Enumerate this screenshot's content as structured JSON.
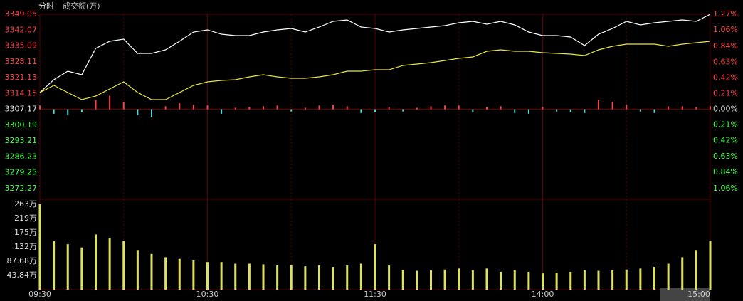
{
  "header": {
    "tab": "分时",
    "volume_label": "成交额(万)"
  },
  "chart_data": {
    "type": "intraday",
    "categories": [
      "09:30",
      null,
      null,
      null,
      null,
      null,
      null,
      null,
      null,
      null,
      null,
      null,
      "10:30",
      null,
      null,
      null,
      null,
      null,
      null,
      null,
      null,
      null,
      null,
      null,
      "11:30",
      null,
      null,
      null,
      null,
      null,
      null,
      null,
      null,
      null,
      null,
      null,
      "14:00",
      null,
      null,
      null,
      null,
      null,
      null,
      null,
      null,
      null,
      null,
      null,
      "15:00"
    ],
    "series": [
      {
        "color": "#ffffff",
        "values": [
          3314.58,
          3320.22,
          3323.98,
          3322.41,
          3334.01,
          3337.14,
          3338.08,
          3331.81,
          3331.81,
          3333.38,
          3337.14,
          3341.21,
          3342.16,
          3340.27,
          3339.65,
          3339.65,
          3341.21,
          3342.16,
          3342.78,
          3341.21,
          3343.41,
          3345.92,
          3346.54,
          3343.41,
          3342.78,
          3341.21,
          3342.16,
          3342.78,
          3343.41,
          3344.04,
          3345.29,
          3345.92,
          3344.66,
          3345.92,
          3344.35,
          3341.21,
          3339.65,
          3339.65,
          3339.02,
          3335.26,
          3340.27,
          3342.78,
          3345.92,
          3344.35,
          3345.29,
          3345.92,
          3346.54,
          3345.92,
          3349.05
        ]
      },
      {
        "color": "#e8e83a",
        "values": [
          3314.58,
          3317.71,
          3314.58,
          3311.44,
          3313.01,
          3316.14,
          3319.28,
          3314.58,
          3311.44,
          3311.44,
          3314.58,
          3317.71,
          3319.28,
          3319.9,
          3320.22,
          3321.47,
          3322.41,
          3321.47,
          3320.84,
          3320.84,
          3321.47,
          3322.41,
          3323.98,
          3323.98,
          3324.6,
          3324.6,
          3326.49,
          3327.11,
          3327.74,
          3328.68,
          3329.62,
          3330.25,
          3332.75,
          3333.38,
          3332.75,
          3332.75,
          3332.13,
          3331.81,
          3331.5,
          3330.87,
          3333.38,
          3334.95,
          3335.89,
          3335.89,
          3335.89,
          3334.95,
          3335.89,
          3336.51,
          3337.14
        ]
      },
      {
        "axis": "y2",
        "colors": [
          "#ff4444",
          "#54d8d8"
        ],
        "values": [
          0.05,
          -0.06,
          -0.08,
          -0.04,
          0.12,
          0.18,
          0.1,
          -0.08,
          -0.1,
          0.04,
          0.08,
          0.06,
          0.05,
          -0.06,
          0.02,
          0.03,
          0.04,
          0.05,
          -0.03,
          0.02,
          0.05,
          0.06,
          0.04,
          -0.05,
          -0.04,
          0.03,
          -0.03,
          0.02,
          0.04,
          0.05,
          0.05,
          -0.04,
          0.03,
          0.04,
          -0.05,
          -0.06,
          0.03,
          -0.03,
          -0.04,
          -0.05,
          0.12,
          0.1,
          0.06,
          -0.03,
          -0.05,
          0.04,
          0.04,
          0.03,
          0.04
        ]
      }
    ],
    "ylim": [
      3272.27,
      3349.05
    ],
    "yticks": [
      3349.05,
      3342.07,
      3335.09,
      3328.11,
      3321.13,
      3314.15,
      3307.17,
      3300.19,
      3293.21,
      3286.23,
      3279.25,
      3272.27
    ],
    "y2lim": [
      -1.06,
      1.27
    ],
    "y2ticks": [
      {
        "value": 1.27,
        "label": "1.27%"
      },
      {
        "value": 1.06,
        "label": "1.06%"
      },
      {
        "value": 0.84,
        "label": "0.84%"
      },
      {
        "value": 0.63,
        "label": "0.63%"
      },
      {
        "value": 0.42,
        "label": "0.42%"
      },
      {
        "value": 0.21,
        "label": "0.21%"
      },
      {
        "value": 0,
        "label": "0.00%"
      },
      {
        "value": -0.21,
        "label": "0.21%"
      },
      {
        "value": -0.42,
        "label": "0.42%"
      },
      {
        "value": -0.63,
        "label": "0.63%"
      },
      {
        "value": -0.84,
        "label": "0.84%"
      },
      {
        "value": -1.06,
        "label": "1.06%"
      }
    ],
    "volume": {
      "color": "#e0e060",
      "values": [
        263,
        150,
        140,
        130,
        170,
        160,
        150,
        120,
        110,
        100,
        95,
        90,
        85,
        85,
        80,
        80,
        78,
        75,
        75,
        72,
        75,
        70,
        75,
        80,
        140,
        75,
        60,
        58,
        60,
        62,
        65,
        60,
        65,
        55,
        60,
        55,
        50,
        52,
        55,
        60,
        58,
        60,
        62,
        65,
        70,
        80,
        100,
        120,
        150
      ],
      "ylim": [
        0,
        263.04
      ],
      "yticks": [
        {
          "value": 263.04,
          "label": "263万"
        },
        {
          "value": 219.2,
          "label": "219万"
        },
        {
          "value": 175.36,
          "label": "175万"
        },
        {
          "value": 131.52,
          "label": "132万"
        },
        {
          "value": 87.68,
          "label": "87.68万"
        },
        {
          "value": 43.84,
          "label": "43.84万"
        }
      ]
    },
    "colors": {
      "up": "#ff4444",
      "down": "#44ff44",
      "flat": "#dddddd"
    }
  }
}
